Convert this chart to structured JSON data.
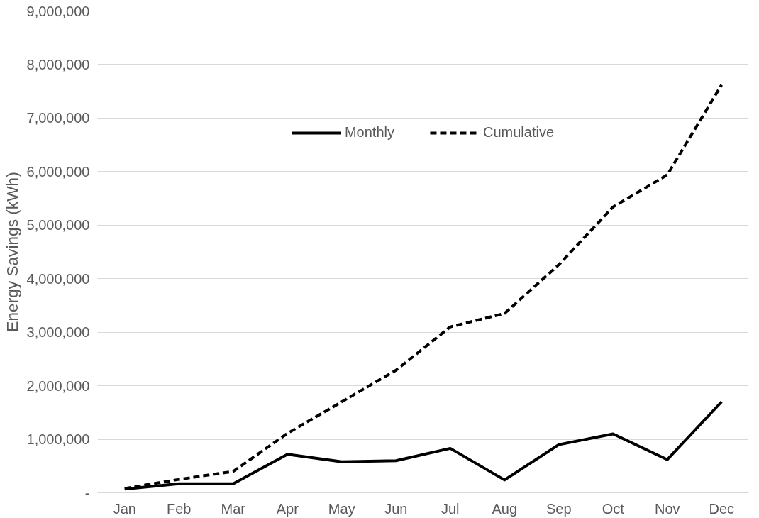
{
  "chart_data": {
    "type": "line",
    "ylabel": "Energy Savings (kWh)",
    "categories": [
      "Jan",
      "Feb",
      "Mar",
      "Apr",
      "May",
      "Jun",
      "Jul",
      "Aug",
      "Sep",
      "Oct",
      "Nov",
      "Dec"
    ],
    "series": [
      {
        "name": "Monthly",
        "color": "#000000",
        "line_style": "solid",
        "values": [
          70000,
          170000,
          170000,
          720000,
          580000,
          600000,
          830000,
          240000,
          900000,
          1100000,
          620000,
          1700000
        ]
      },
      {
        "name": "Cumulative",
        "color": "#000000",
        "line_style": "dashed",
        "values": [
          80000,
          250000,
          400000,
          1110000,
          1700000,
          2290000,
          3100000,
          3350000,
          4260000,
          5340000,
          5940000,
          7620000
        ]
      }
    ],
    "ylim": [
      0,
      9000000
    ],
    "yticks": [
      {
        "value": 0,
        "label": "-"
      },
      {
        "value": 1000000,
        "label": "1,000,000"
      },
      {
        "value": 2000000,
        "label": "2,000,000"
      },
      {
        "value": 3000000,
        "label": "3,000,000"
      },
      {
        "value": 4000000,
        "label": "4,000,000"
      },
      {
        "value": 5000000,
        "label": "5,000,000"
      },
      {
        "value": 6000000,
        "label": "6,000,000"
      },
      {
        "value": 7000000,
        "label": "7,000,000"
      },
      {
        "value": 8000000,
        "label": "8,000,000"
      },
      {
        "value": 9000000,
        "label": "9,000,000"
      }
    ],
    "grid": "y",
    "legend": "top",
    "marker": "none"
  }
}
